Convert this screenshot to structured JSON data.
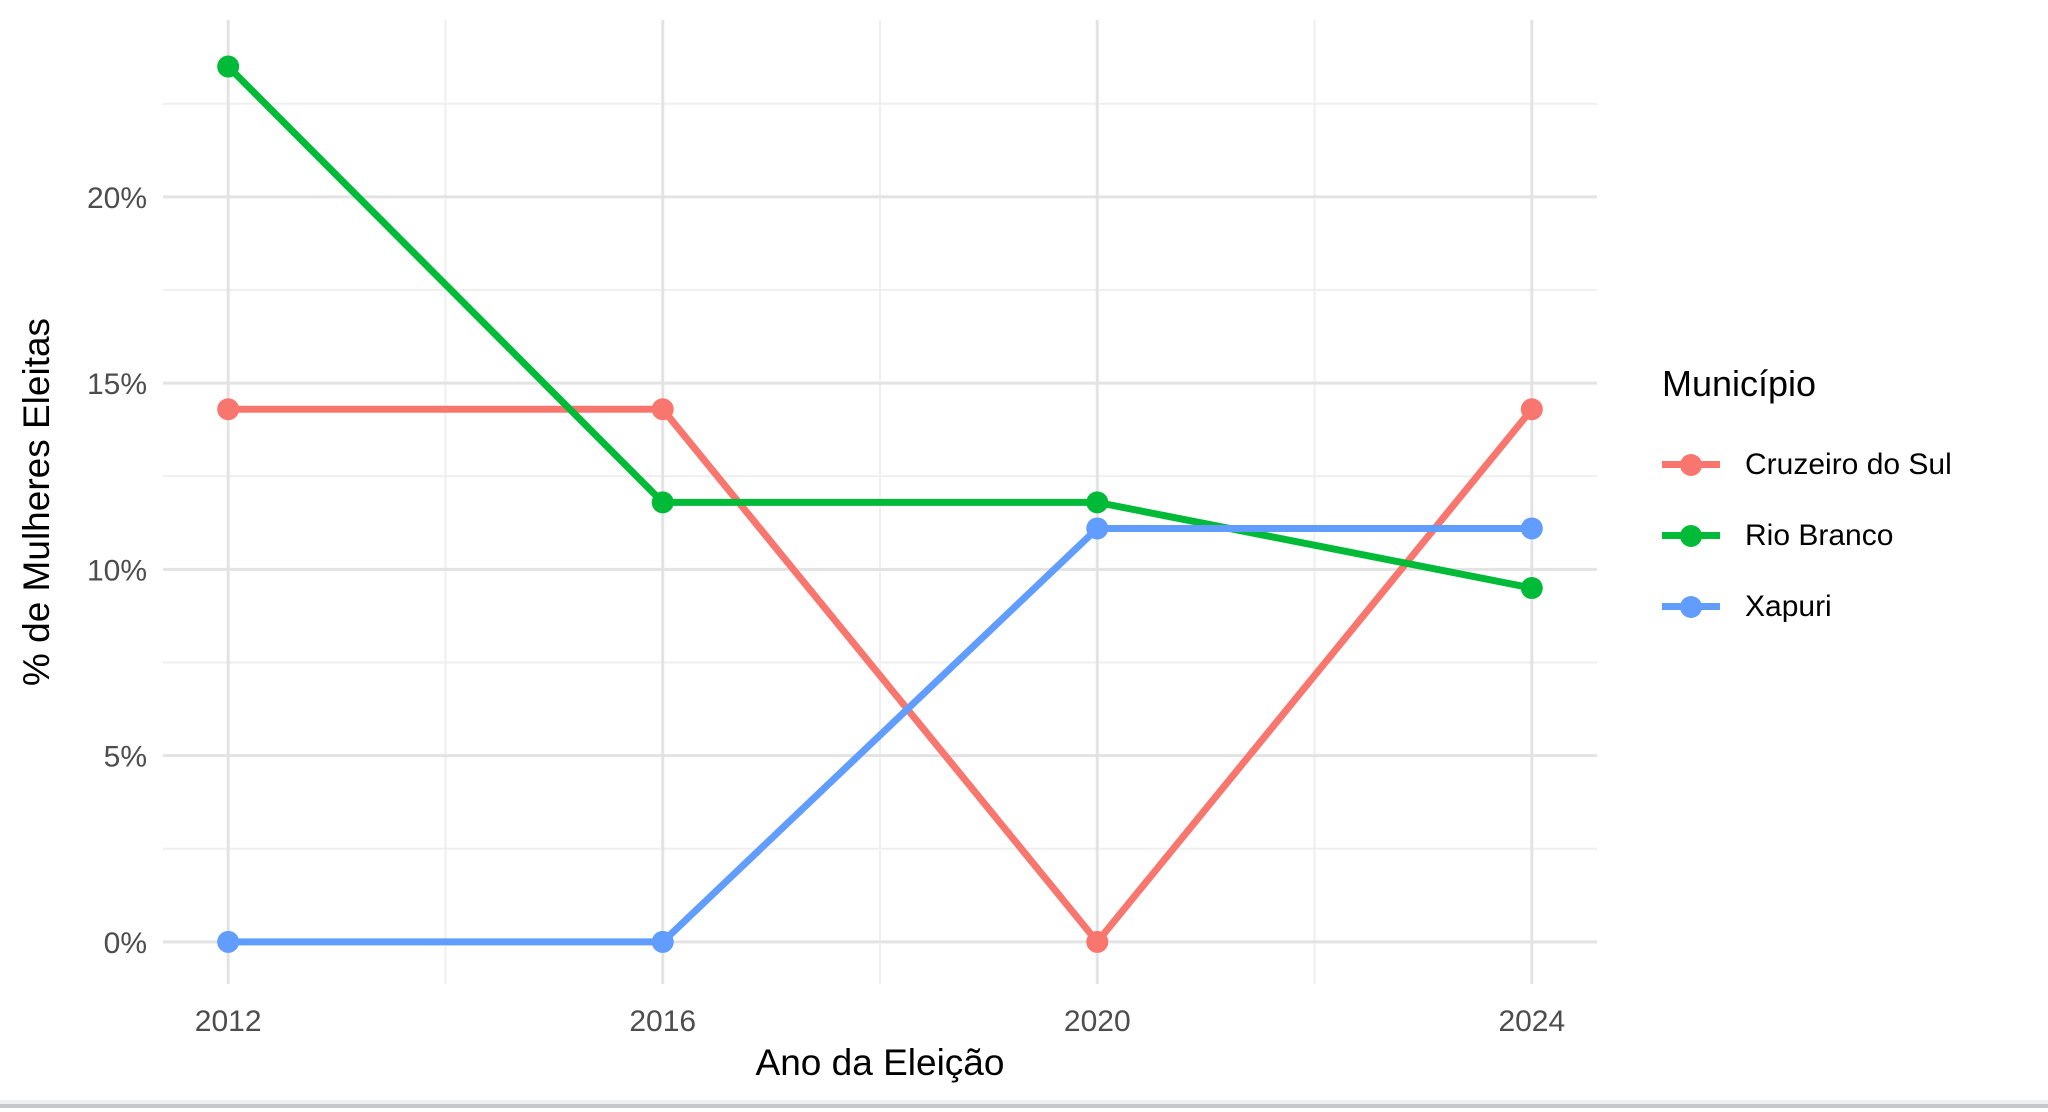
{
  "chart_data": {
    "type": "line",
    "title": "",
    "xlabel": "Ano da Eleição",
    "ylabel": "% de Mulheres Eleitas",
    "legend_title": "Município",
    "legend_position": "right",
    "grid": true,
    "x": [
      2012,
      2016,
      2020,
      2024
    ],
    "x_tick_labels": [
      "2012",
      "2016",
      "2020",
      "2024"
    ],
    "x_minor_ticks": [
      2014,
      2018,
      2022
    ],
    "xlim": [
      2011.4,
      2024.6
    ],
    "y_ticks": [
      0,
      5,
      10,
      15,
      20
    ],
    "y_tick_labels": [
      "0%",
      "5%",
      "10%",
      "15%",
      "20%"
    ],
    "y_minor_ticks": [
      2.5,
      7.5,
      12.5,
      17.5,
      22.5
    ],
    "ylim": [
      -1.13,
      24.75
    ],
    "series": [
      {
        "name": "Cruzeiro do Sul",
        "color": "#F8766D",
        "values": [
          14.3,
          14.3,
          0,
          14.3
        ]
      },
      {
        "name": "Rio Branco",
        "color": "#00BA38",
        "values": [
          23.5,
          11.8,
          11.8,
          9.5
        ]
      },
      {
        "name": "Xapuri",
        "color": "#619CFF",
        "values": [
          0,
          0,
          11.1,
          11.1
        ]
      }
    ]
  },
  "palette": {
    "grid_major": "#e3e3e3",
    "grid_minor": "#efefef",
    "tick_label": "#4d4d4d",
    "axis_title": "#000000",
    "background": "#ffffff",
    "bottom_divider": "#c4c8cb"
  }
}
